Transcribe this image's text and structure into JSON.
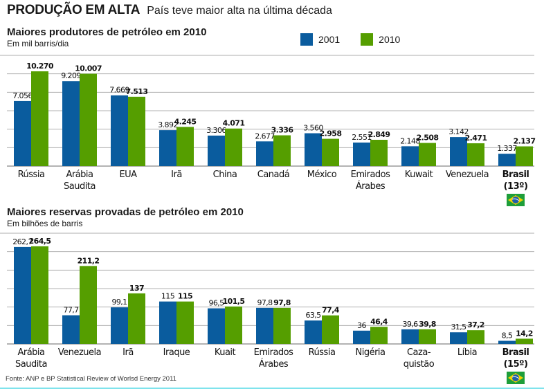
{
  "header": {
    "kicker": "PRODUÇÃO EM ALTA",
    "subtitle": "País teve maior alta na última década"
  },
  "legend": [
    {
      "label": "2001",
      "color": "#0a5c9e"
    },
    {
      "label": "2010",
      "color": "#559e00"
    }
  ],
  "colors": {
    "series2001": "#0a5c9e",
    "series2010": "#559e00",
    "grid": "#b0b0b0"
  },
  "source": "Fonte: ANP e BP Statistical Review of Worlsd Energy 2011",
  "chart_data": [
    {
      "type": "bar",
      "title": "Maiores produtores de petróleo em 2010",
      "subtitle": "Em mil barris/dia",
      "ylim": [
        0,
        12000
      ],
      "grid_step": 2000,
      "grid": true,
      "legend_position": "top-right",
      "categories": [
        [
          "Rússia"
        ],
        [
          "Arábia",
          "Saudita"
        ],
        [
          "EUA"
        ],
        [
          "Irã"
        ],
        [
          "China"
        ],
        [
          "Canadá"
        ],
        [
          "México"
        ],
        [
          "Emirados",
          "Árabes"
        ],
        [
          "Kuwait"
        ],
        [
          "Venezuela"
        ],
        [
          "Brasil",
          "(13º)"
        ]
      ],
      "highlight_last": true,
      "series": [
        {
          "name": "2001",
          "values": [
            7056,
            9209,
            7669,
            3892,
            3306,
            2677,
            3560,
            2551,
            2148,
            3142,
            1337
          ],
          "labels": [
            "7.056",
            "9.209",
            "7.669",
            "3.892",
            "3.306",
            "2.677",
            "3.560",
            "2.551",
            "2.148",
            "3.142",
            "1.337"
          ]
        },
        {
          "name": "2010",
          "values": [
            10270,
            10007,
            7513,
            4245,
            4071,
            3336,
            2958,
            2849,
            2508,
            2471,
            2137
          ],
          "labels": [
            "10.270",
            "10.007",
            "7.513",
            "4.245",
            "4.071",
            "3.336",
            "2.958",
            "2.849",
            "2.508",
            "2.471",
            "2.137"
          ]
        }
      ]
    },
    {
      "type": "bar",
      "title": "Maiores reservas provadas de petróleo  em 2010",
      "subtitle": "Em bilhões de barris",
      "ylim": [
        0,
        300
      ],
      "grid_step": 50,
      "grid": true,
      "categories": [
        [
          "Arábia",
          "Saudita"
        ],
        [
          "Venezuela"
        ],
        [
          "Irã"
        ],
        [
          "Iraque"
        ],
        [
          "Kuait"
        ],
        [
          "Emirados",
          "Árabes"
        ],
        [
          "Rússia"
        ],
        [
          "Nigéria"
        ],
        [
          "Caza-",
          "quistão"
        ],
        [
          "Líbia"
        ],
        [
          "Brasil",
          "(15º)"
        ]
      ],
      "highlight_last": true,
      "series": [
        {
          "name": "2001",
          "values": [
            262.7,
            77.7,
            99.1,
            115,
            96.5,
            97.8,
            63.5,
            36,
            39.6,
            31.5,
            8.5
          ],
          "labels": [
            "262,7",
            "77,7",
            "99,1",
            "115",
            "96,5",
            "97,8",
            "63,5",
            "36",
            "39,6",
            "31,5",
            "8,5"
          ]
        },
        {
          "name": "2010",
          "values": [
            264.5,
            211.2,
            137,
            115,
            101.5,
            97.8,
            77.4,
            46.4,
            39.8,
            37.2,
            14.2
          ],
          "labels": [
            "264,5",
            "211,2",
            "137",
            "115",
            "101,5",
            "97,8",
            "77,4",
            "46,4",
            "39,8",
            "37,2",
            "14,2"
          ]
        }
      ]
    }
  ]
}
